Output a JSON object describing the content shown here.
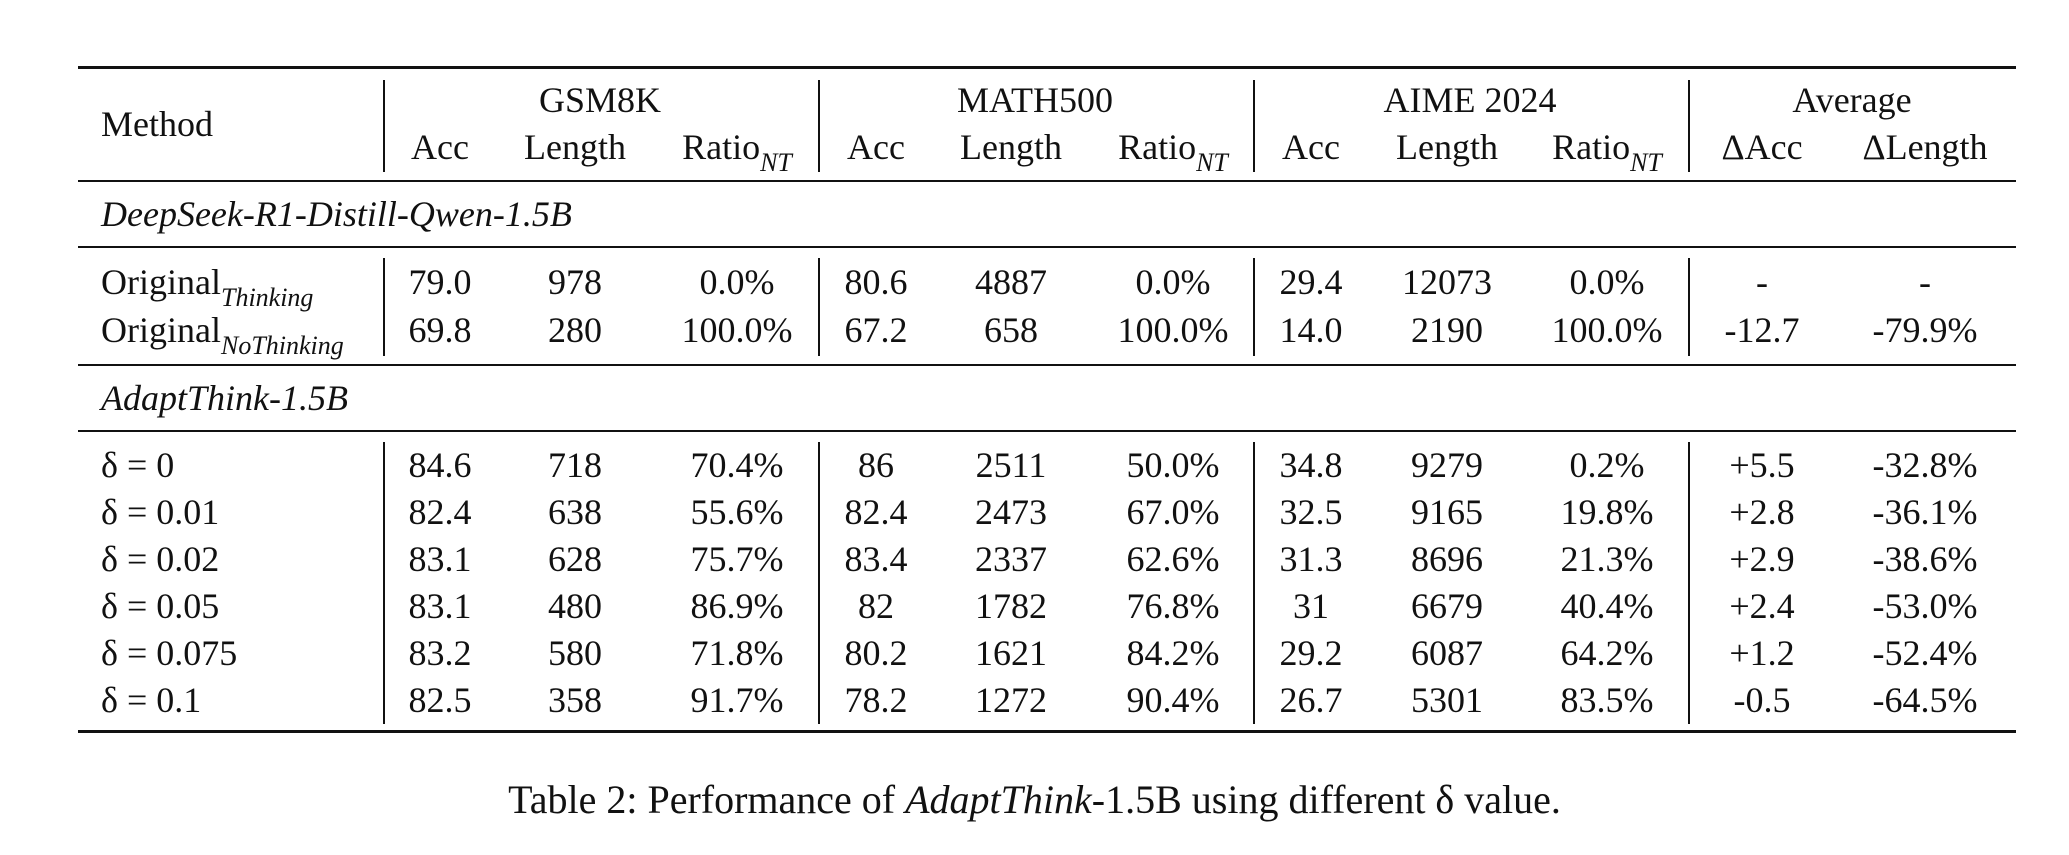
{
  "table": {
    "method_header": "Method",
    "groups": [
      "GSM8K",
      "MATH500",
      "AIME 2024",
      "Average"
    ],
    "sub_acc": "Acc",
    "sub_length": "Length",
    "sub_ratio": "Ratio",
    "sub_ratio_subscript": "NT",
    "sub_dacc": "ΔAcc",
    "sub_dlength": "ΔLength",
    "section1_title": "DeepSeek-R1-Distill-Qwen-1.5B",
    "section2_title": "AdaptThink-1.5B",
    "original_rows": [
      {
        "name": "Original",
        "sub": "Thinking",
        "cells": [
          "79.0",
          "978",
          "0.0%",
          "80.6",
          "4887",
          "0.0%",
          "29.4",
          "12073",
          "0.0%",
          "-",
          "-"
        ]
      },
      {
        "name": "Original",
        "sub": "NoThinking",
        "cells": [
          "69.8",
          "280",
          "100.0%",
          "67.2",
          "658",
          "100.0%",
          "14.0",
          "2190",
          "100.0%",
          "-12.7",
          "-79.9%"
        ]
      }
    ],
    "delta_rows": [
      {
        "label": "δ = 0",
        "cells": [
          "84.6",
          "718",
          "70.4%",
          "86",
          "2511",
          "50.0%",
          "34.8",
          "9279",
          "0.2%",
          "+5.5",
          "-32.8%"
        ]
      },
      {
        "label": "δ = 0.01",
        "cells": [
          "82.4",
          "638",
          "55.6%",
          "82.4",
          "2473",
          "67.0%",
          "32.5",
          "9165",
          "19.8%",
          "+2.8",
          "-36.1%"
        ]
      },
      {
        "label": "δ = 0.02",
        "cells": [
          "83.1",
          "628",
          "75.7%",
          "83.4",
          "2337",
          "62.6%",
          "31.3",
          "8696",
          "21.3%",
          "+2.9",
          "-38.6%"
        ]
      },
      {
        "label": "δ = 0.05",
        "cells": [
          "83.1",
          "480",
          "86.9%",
          "82",
          "1782",
          "76.8%",
          "31",
          "6679",
          "40.4%",
          "+2.4",
          "-53.0%"
        ]
      },
      {
        "label": "δ = 0.075",
        "cells": [
          "83.2",
          "580",
          "71.8%",
          "80.2",
          "1621",
          "84.2%",
          "29.2",
          "6087",
          "64.2%",
          "+1.2",
          "-52.4%"
        ]
      },
      {
        "label": "δ = 0.1",
        "cells": [
          "82.5",
          "358",
          "91.7%",
          "78.2",
          "1272",
          "90.4%",
          "26.7",
          "5301",
          "83.5%",
          "-0.5",
          "-64.5%"
        ]
      }
    ]
  },
  "caption": {
    "prefix": "Table 2: Performance of ",
    "emph": "AdaptThink",
    "suffix": "-1.5B using different δ value."
  }
}
